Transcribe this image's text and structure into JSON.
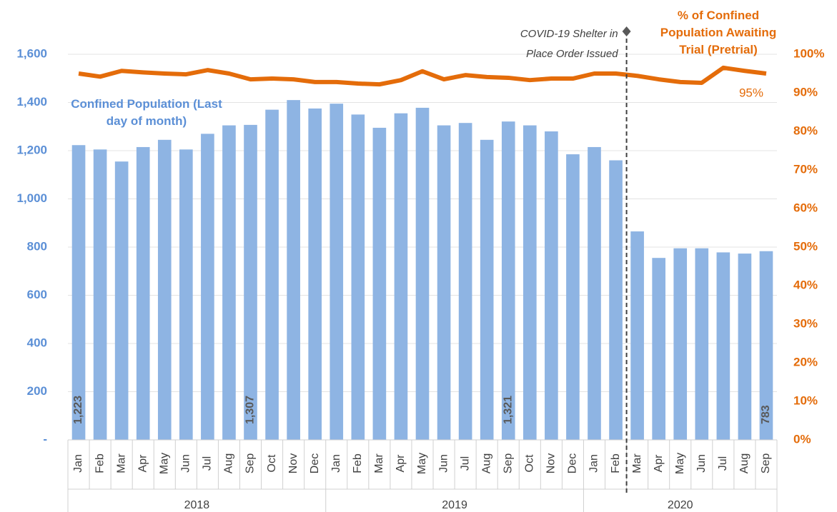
{
  "chart_data": {
    "type": "bar",
    "categories": [
      "Jan",
      "Feb",
      "Mar",
      "Apr",
      "May",
      "Jun",
      "Jul",
      "Aug",
      "Sep",
      "Oct",
      "Nov",
      "Dec",
      "Jan",
      "Feb",
      "Mar",
      "Apr",
      "May",
      "Jun",
      "Jul",
      "Aug",
      "Sep",
      "Oct",
      "Nov",
      "Dec",
      "Jan",
      "Feb",
      "Mar",
      "Apr",
      "May",
      "Jun",
      "Jul",
      "Aug",
      "Sep"
    ],
    "x_groups": [
      "2018",
      "2019",
      "2020"
    ],
    "series": [
      {
        "name": "Confined Population (Last day of month)",
        "type": "bar",
        "color": "#8eb4e3",
        "values": [
          1223,
          1205,
          1155,
          1215,
          1245,
          1205,
          1270,
          1305,
          1307,
          1370,
          1410,
          1375,
          1395,
          1350,
          1295,
          1355,
          1378,
          1305,
          1315,
          1245,
          1321,
          1305,
          1280,
          1185,
          1215,
          1160,
          865,
          755,
          795,
          795,
          778,
          773,
          783
        ],
        "value_labels": [
          "1,223",
          null,
          null,
          null,
          null,
          null,
          null,
          null,
          "1,307",
          null,
          null,
          null,
          null,
          null,
          null,
          null,
          null,
          null,
          null,
          null,
          "1,321",
          null,
          null,
          null,
          null,
          null,
          null,
          null,
          null,
          null,
          null,
          null,
          "783"
        ]
      },
      {
        "name": "% of Confined Population Awaiting Trial (Pretrial)",
        "type": "line",
        "axis": "y2",
        "color": "#e46c0a",
        "values": [
          95,
          94.2,
          95.7,
          95.3,
          95,
          94.8,
          95.9,
          95,
          93.5,
          93.7,
          93.5,
          92.8,
          92.8,
          92.4,
          92.2,
          93.3,
          95.6,
          93.5,
          94.6,
          94.1,
          93.9,
          93.3,
          93.7,
          93.7,
          95,
          95,
          94.4,
          93.5,
          92.8,
          92.6,
          96.5,
          95.7,
          95
        ],
        "value_labels": [
          null,
          null,
          null,
          null,
          null,
          null,
          null,
          null,
          null,
          null,
          null,
          null,
          null,
          null,
          null,
          null,
          null,
          null,
          null,
          null,
          null,
          null,
          null,
          null,
          null,
          null,
          null,
          null,
          null,
          null,
          null,
          null,
          "95%"
        ]
      }
    ],
    "annotation": [
      "COVID-19 Shelter in",
      "Place Order Issued"
    ],
    "ylim": [
      0,
      1600
    ],
    "yticks": [
      {
        "value": 0,
        "label": "-"
      },
      200,
      400,
      600,
      800,
      {
        "value": 1000,
        "label": "1,000"
      },
      {
        "value": 1200,
        "label": "1,200"
      },
      {
        "value": 1400,
        "label": "1,400"
      },
      {
        "value": 1600,
        "label": "1,600"
      }
    ],
    "y2lim": [
      0,
      100
    ],
    "y2ticks": [
      {
        "value": 0,
        "label": "0%"
      },
      {
        "value": 10,
        "label": "10%"
      },
      {
        "value": 20,
        "label": "20%"
      },
      {
        "value": 30,
        "label": "30%"
      },
      {
        "value": 40,
        "label": "40%"
      },
      {
        "value": 50,
        "label": "50%"
      },
      {
        "value": 60,
        "label": "60%"
      },
      {
        "value": 70,
        "label": "70%"
      },
      {
        "value": 80,
        "label": "80%"
      },
      {
        "value": 90,
        "label": "90%"
      },
      {
        "value": 100,
        "label": "100%"
      }
    ],
    "grid": true
  }
}
